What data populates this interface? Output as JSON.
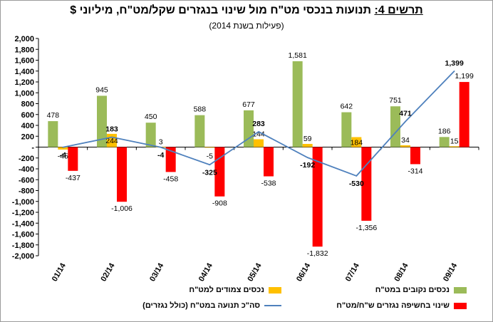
{
  "title_prefix": "תרשים 4:",
  "title_main": "תנועות בנכסי מט\"ח מול שינוי בנגזרים שקל/מט\"ח, מיליוני $",
  "subtitle": "(פעילות בשנת 2014)",
  "chart_data": {
    "type": "bar",
    "categories": [
      "01/14",
      "02/14",
      "03/14",
      "04/14",
      "05/14",
      "06/14",
      "07/14",
      "08/14",
      "09/14"
    ],
    "ylim": [
      -2000,
      2000
    ],
    "yticks": [
      -2000,
      -1800,
      -1600,
      -1400,
      -1200,
      -1000,
      -800,
      -600,
      -400,
      -200,
      0,
      200,
      400,
      600,
      800,
      1000,
      1200,
      1400,
      1600,
      1800,
      2000
    ],
    "ytick_labels": [
      "-2,000",
      "-1,800",
      "-1,600",
      "-1,400",
      "-1,200",
      "-1,000",
      "-800",
      "-600",
      "-400",
      "-200",
      "-",
      "200",
      "400",
      "600",
      "800",
      "1,000",
      "1,200",
      "1,400",
      "1,600",
      "1,800",
      "2,000"
    ],
    "grid": false,
    "legend_position": "bottom",
    "series": [
      {
        "name": "נכסים נקובים במט\"ח",
        "kind": "bar",
        "color": "#9bbb59",
        "values": [
          478,
          945,
          450,
          588,
          677,
          1581,
          642,
          751,
          186
        ],
        "labels": [
          "478",
          "945",
          "450",
          "588",
          "677",
          "1,581",
          "642",
          "751",
          "186"
        ]
      },
      {
        "name": "נכסים צמודים למט\"ח",
        "kind": "bar",
        "color": "#ffc000",
        "values": [
          -45,
          244,
          3,
          -5,
          144,
          59,
          184,
          34,
          15
        ],
        "labels": [
          "-45",
          "244",
          "3",
          "-5",
          "144",
          "59",
          "184",
          "34",
          "15"
        ]
      },
      {
        "name": "שינוי בחשיפה נגזרים ש\"ח/מט\"ח",
        "kind": "bar",
        "color": "#ff0000",
        "values": [
          -437,
          -1006,
          -458,
          -908,
          -538,
          -1832,
          -1356,
          -314,
          1199
        ],
        "labels": [
          "-437",
          "-1,006",
          "-458",
          "-908",
          "-538",
          "-1,832",
          "-1,356",
          "-314",
          "1,199"
        ]
      },
      {
        "name": "סה\"כ תנועה במט\"ח (כולל נגזרים)",
        "kind": "line",
        "color": "#4f81bd",
        "values": [
          -4,
          183,
          -4,
          -325,
          283,
          -192,
          -530,
          471,
          1399
        ],
        "labels": [
          "-4",
          "183",
          "-4",
          "-325",
          "283",
          "-192",
          "-530",
          "471",
          "1,399"
        ]
      }
    ]
  }
}
